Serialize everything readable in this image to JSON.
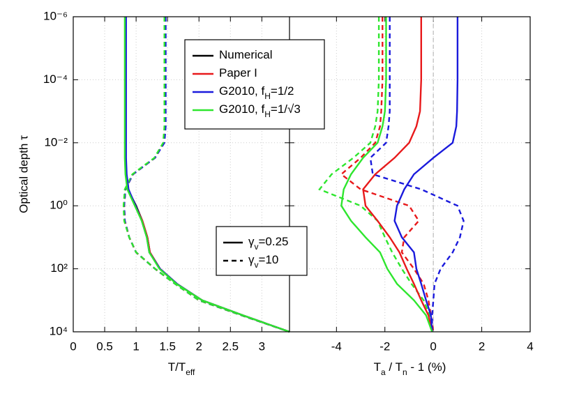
{
  "chart_data": [
    {
      "type": "line",
      "y_label": "Optical depth τ",
      "x_label": [
        {
          "text": "T/T"
        },
        {
          "text": "eff",
          "sub": true
        }
      ],
      "tau": [
        1e-06,
        0.0001,
        0.001,
        0.003,
        0.01,
        0.03,
        0.1,
        0.3,
        1,
        3,
        10,
        30,
        100,
        300,
        1000,
        3000,
        10000
      ],
      "ylim": [
        1e-06,
        10000
      ],
      "y_inverted": true,
      "log_y": true,
      "yticks": [
        {
          "value": 1e-06,
          "label": "10⁻⁶"
        },
        {
          "value": 0.0001,
          "label": "10⁻⁴"
        },
        {
          "value": 0.01,
          "label": "10⁻²"
        },
        {
          "value": 1,
          "label": "10⁰"
        },
        {
          "value": 100,
          "label": "10²"
        },
        {
          "value": 10000,
          "label": "10⁴"
        }
      ],
      "xlim": [
        0,
        3.44
      ],
      "xticks": [
        0,
        0.5,
        1,
        1.5,
        2,
        2.5,
        3
      ],
      "grid": true,
      "style_legend": [
        {
          "label": [
            {
              "text": "γ"
            },
            {
              "text": "v",
              "sub": true
            },
            {
              "text": "=0.25"
            }
          ],
          "dash": false
        },
        {
          "label": [
            {
              "text": "γ"
            },
            {
              "text": "v",
              "sub": true
            },
            {
              "text": "=10"
            }
          ],
          "dash": true
        }
      ],
      "series": [
        {
          "color": "#000000",
          "dash": true,
          "values": [
            1.46,
            1.46,
            1.46,
            1.46,
            1.44,
            1.3,
            0.95,
            0.83,
            0.81,
            0.82,
            0.89,
            1.0,
            1.3,
            1.62,
            2.0,
            2.68,
            3.44
          ]
        },
        {
          "color": "#e8191b",
          "dash": true,
          "values": [
            1.46,
            1.46,
            1.46,
            1.46,
            1.44,
            1.3,
            0.95,
            0.83,
            0.81,
            0.82,
            0.89,
            1.0,
            1.3,
            1.62,
            2.0,
            2.68,
            3.44
          ]
        },
        {
          "color": "#1a1adc",
          "dash": true,
          "values": [
            1.47,
            1.47,
            1.47,
            1.47,
            1.45,
            1.3,
            0.95,
            0.83,
            0.81,
            0.82,
            0.89,
            1.0,
            1.3,
            1.62,
            2.0,
            2.68,
            3.44
          ]
        },
        {
          "color": "#2ee62e",
          "dash": true,
          "values": [
            1.45,
            1.45,
            1.45,
            1.45,
            1.43,
            1.29,
            0.94,
            0.82,
            0.8,
            0.81,
            0.89,
            1.0,
            1.3,
            1.62,
            2.0,
            2.68,
            3.44
          ]
        },
        {
          "color": "#000000",
          "dash": false,
          "values": [
            0.83,
            0.83,
            0.83,
            0.83,
            0.83,
            0.83,
            0.84,
            0.87,
            1.0,
            1.1,
            1.18,
            1.22,
            1.38,
            1.65,
            2.05,
            2.7,
            3.44
          ]
        },
        {
          "color": "#e8191b",
          "dash": false,
          "values": [
            0.83,
            0.83,
            0.83,
            0.83,
            0.83,
            0.83,
            0.84,
            0.87,
            0.99,
            1.1,
            1.18,
            1.22,
            1.38,
            1.65,
            2.05,
            2.7,
            3.44
          ]
        },
        {
          "color": "#1a1adc",
          "dash": false,
          "values": [
            0.84,
            0.84,
            0.84,
            0.84,
            0.84,
            0.84,
            0.85,
            0.88,
            0.99,
            1.09,
            1.17,
            1.21,
            1.38,
            1.65,
            2.05,
            2.7,
            3.44
          ]
        },
        {
          "color": "#2ee62e",
          "dash": false,
          "values": [
            0.82,
            0.82,
            0.82,
            0.82,
            0.82,
            0.82,
            0.83,
            0.86,
            0.98,
            1.09,
            1.17,
            1.21,
            1.37,
            1.64,
            2.05,
            2.7,
            3.44
          ]
        }
      ]
    },
    {
      "type": "line",
      "x_label": [
        {
          "text": "T"
        },
        {
          "text": "a",
          "sub": true
        },
        {
          "text": " / T"
        },
        {
          "text": "n",
          "sub": true
        },
        {
          "text": " - 1 (%)"
        }
      ],
      "xlim": [
        -5.94,
        4
      ],
      "xticks": [
        -4,
        -2,
        0,
        2,
        4
      ],
      "grid": true,
      "reference_x": 0,
      "legend": [
        {
          "label": [
            {
              "text": "Numerical"
            }
          ],
          "color": "#000000"
        },
        {
          "label": [
            {
              "text": "Paper I"
            }
          ],
          "color": "#e8191b"
        },
        {
          "label": [
            {
              "text": "G2010, f"
            },
            {
              "text": "H",
              "sub": true
            },
            {
              "text": "=1/2"
            }
          ],
          "color": "#1a1adc"
        },
        {
          "label": [
            {
              "text": "G2010, f"
            },
            {
              "text": "H",
              "sub": true
            },
            {
              "text": "=1/√3"
            }
          ],
          "color": "#2ee62e"
        }
      ],
      "series": [
        {
          "color": "#e8191b",
          "dash": true,
          "values": [
            -2.1,
            -2.1,
            -2.15,
            -2.2,
            -2.4,
            -3.0,
            -3.8,
            -3.0,
            -1.0,
            -0.6,
            -1.2,
            -1.3,
            -0.8,
            -0.4,
            -0.2,
            -0.1,
            0
          ]
        },
        {
          "color": "#1a1adc",
          "dash": true,
          "values": [
            -1.8,
            -1.8,
            -1.8,
            -1.85,
            -1.95,
            -2.6,
            -2.5,
            -0.5,
            1.0,
            1.25,
            1.1,
            0.8,
            0.3,
            0.05,
            0,
            -0.05,
            -0.05
          ]
        },
        {
          "color": "#2ee62e",
          "dash": true,
          "values": [
            -2.25,
            -2.25,
            -2.3,
            -2.4,
            -2.6,
            -3.3,
            -4.2,
            -4.7,
            -3.0,
            -2.3,
            -2.0,
            -1.7,
            -1.3,
            -0.9,
            -0.4,
            -0.15,
            -0.05
          ]
        },
        {
          "color": "#e8191b",
          "dash": false,
          "values": [
            -0.5,
            -0.5,
            -0.55,
            -0.7,
            -1.0,
            -1.6,
            -2.4,
            -2.9,
            -2.8,
            -2.3,
            -1.8,
            -1.4,
            -1.1,
            -0.8,
            -0.5,
            -0.2,
            -0.05
          ]
        },
        {
          "color": "#1a1adc",
          "dash": false,
          "values": [
            1.0,
            1.0,
            0.98,
            0.95,
            0.8,
            0.0,
            -0.8,
            -1.2,
            -1.5,
            -1.6,
            -1.3,
            -0.8,
            -0.7,
            -0.5,
            -0.3,
            -0.1,
            -0.05
          ]
        },
        {
          "color": "#2ee62e",
          "dash": false,
          "values": [
            -1.95,
            -1.95,
            -2.0,
            -2.1,
            -2.3,
            -2.9,
            -3.4,
            -3.7,
            -3.8,
            -3.4,
            -2.8,
            -2.2,
            -1.9,
            -1.5,
            -0.8,
            -0.3,
            -0.05
          ]
        }
      ]
    }
  ]
}
